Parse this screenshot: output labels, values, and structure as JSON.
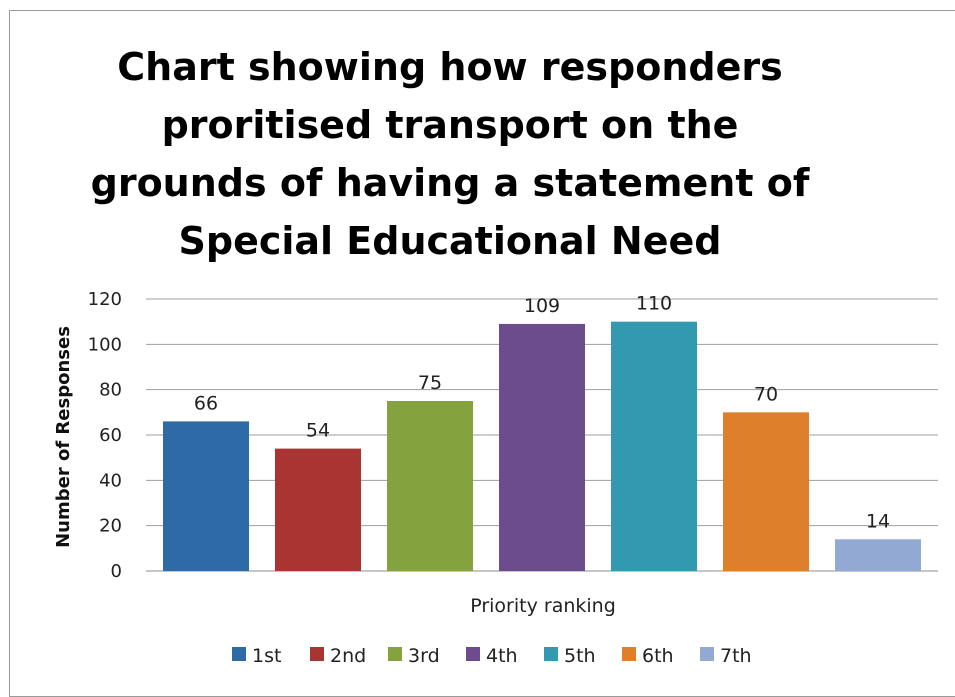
{
  "chart_data": {
    "type": "bar",
    "title": "Chart showing how responders proritised transport on the grounds of having a statement of Special Educational Need",
    "xlabel": "Priority ranking",
    "ylabel": "Number of Responses",
    "categories": [
      "1st",
      "2nd",
      "3rd",
      "4th",
      "5th",
      "6th",
      "7th"
    ],
    "values": [
      66,
      54,
      75,
      109,
      110,
      70,
      14
    ],
    "colors": [
      "#2E6AA6",
      "#A93533",
      "#84A33E",
      "#6C4C8C",
      "#3399B0",
      "#DE7F2B",
      "#92A9D4"
    ],
    "ylim": [
      0,
      120
    ],
    "yticks": [
      0,
      20,
      40,
      60,
      80,
      100,
      120
    ],
    "grid": true,
    "legend": [
      "1st",
      "2nd",
      "3rd",
      "4th",
      "5th",
      "6th",
      "7th"
    ],
    "legend_position": "bottom",
    "data_labels": true
  }
}
